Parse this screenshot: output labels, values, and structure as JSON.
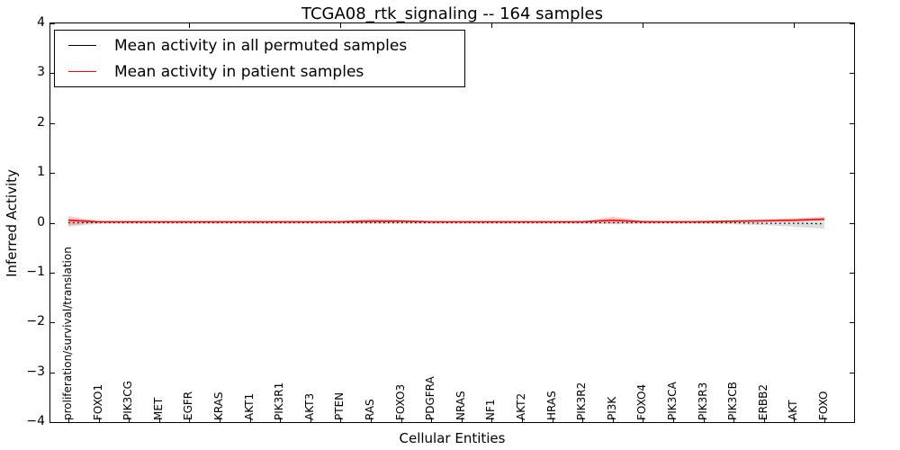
{
  "chart_data": {
    "type": "line",
    "title": "TCGA08_rtk_signaling -- 164 samples",
    "xlabel": "Cellular Entities",
    "ylabel": "Inferred Activity",
    "ylim": [
      -4,
      4
    ],
    "yticks": [
      4,
      3,
      2,
      1,
      0,
      -1,
      -2,
      -3,
      -4
    ],
    "ytick_labels": [
      "4",
      "3",
      "2",
      "1",
      "0",
      "−1",
      "−2",
      "−3",
      "−4"
    ],
    "grid": false,
    "legend_position": "upper left",
    "top_tick_indices": [
      4,
      9,
      14,
      19,
      24
    ],
    "categories": [
      "proliferation/survival/translation",
      "FOXO1",
      "PIK3CG",
      "MET",
      "EGFR",
      "KRAS",
      "AKT1",
      "PIK3R1",
      "AKT3",
      "PTEN",
      "RAS",
      "FOXO3",
      "PDGFRA",
      "NRAS",
      "NF1",
      "AKT2",
      "HRAS",
      "PIK3R2",
      "PI3K",
      "FOXO4",
      "PIK3CA",
      "PIK3R3",
      "PIK3CB",
      "ERBB2",
      "AKT",
      "FOXO"
    ],
    "series": [
      {
        "name": "Mean activity in all permuted samples",
        "color": "#000000",
        "line_style": "dotted",
        "band_color": "#aaaaaa",
        "values": [
          0,
          0,
          0,
          0,
          0,
          0,
          0,
          0,
          0,
          0,
          0,
          0,
          0,
          0,
          0,
          0,
          0,
          0,
          0,
          0,
          0,
          0,
          0,
          -0.01,
          -0.01,
          -0.02
        ],
        "band_upper": [
          0.08,
          0.02,
          0.02,
          0.02,
          0.02,
          0.02,
          0.02,
          0.02,
          0.02,
          0.02,
          0.02,
          0.02,
          0.02,
          0.02,
          0.02,
          0.02,
          0.02,
          0.02,
          0.03,
          0.02,
          0.02,
          0.02,
          0.02,
          0.02,
          0.02,
          0.02
        ],
        "band_lower": [
          -0.08,
          -0.02,
          -0.02,
          -0.02,
          -0.02,
          -0.02,
          -0.02,
          -0.02,
          -0.02,
          -0.02,
          -0.02,
          -0.02,
          -0.02,
          -0.02,
          -0.02,
          -0.02,
          -0.02,
          -0.02,
          -0.03,
          -0.02,
          -0.02,
          -0.02,
          -0.03,
          -0.05,
          -0.08,
          -0.12
        ]
      },
      {
        "name": "Mean activity in patient samples",
        "color": "#ff0000",
        "line_style": "solid",
        "band_color": "#ff7777",
        "values": [
          0.05,
          0.02,
          0.02,
          0.02,
          0.02,
          0.02,
          0.02,
          0.02,
          0.02,
          0.02,
          0.03,
          0.03,
          0.02,
          0.02,
          0.02,
          0.02,
          0.02,
          0.02,
          0.05,
          0.02,
          0.02,
          0.02,
          0.03,
          0.04,
          0.05,
          0.07
        ],
        "band_upper": [
          0.13,
          0.03,
          0.03,
          0.03,
          0.03,
          0.03,
          0.03,
          0.03,
          0.03,
          0.03,
          0.08,
          0.06,
          0.03,
          0.03,
          0.03,
          0.03,
          0.03,
          0.03,
          0.12,
          0.04,
          0.03,
          0.04,
          0.05,
          0.07,
          0.09,
          0.12
        ],
        "band_lower": [
          -0.06,
          0.01,
          0.01,
          0.01,
          0.01,
          0.01,
          0.01,
          0.01,
          0.01,
          0.01,
          0,
          0.01,
          0.01,
          0.01,
          0.01,
          0.01,
          0.01,
          0.01,
          -0.01,
          0.01,
          0.01,
          0.01,
          0.01,
          0.02,
          0.02,
          0.03
        ]
      }
    ]
  }
}
